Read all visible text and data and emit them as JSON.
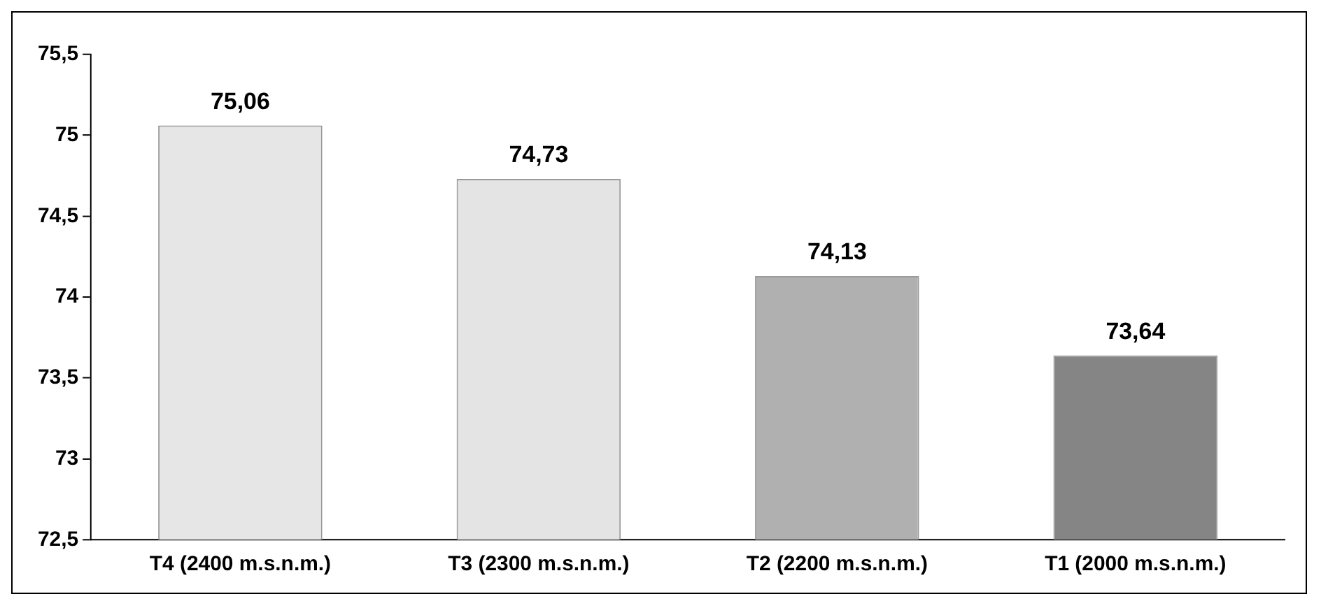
{
  "chart_data": {
    "type": "bar",
    "categories": [
      "T4 (2400 m.s.n.m.)",
      "T3 (2300 m.s.n.m.)",
      "T2 (2200 m.s.n.m.)",
      "T1 (2000 m.s.n.m.)"
    ],
    "values": [
      75.06,
      74.73,
      74.13,
      73.64
    ],
    "value_labels": [
      "75,06",
      "74,73",
      "74,13",
      "73,64"
    ],
    "colors": [
      "#e6e6e6",
      "#e4e4e4",
      "#b0b0b0",
      "#858585"
    ],
    "ylim": [
      72.5,
      75.5
    ],
    "yticks": [
      {
        "value": 72.5,
        "label": "72,5"
      },
      73,
      {
        "value": 73.5,
        "label": "73,5"
      },
      74,
      {
        "value": 74.5,
        "label": "74,5"
      },
      75,
      {
        "value": 75.5,
        "label": "75,5"
      }
    ],
    "grid": false,
    "legend": false
  }
}
